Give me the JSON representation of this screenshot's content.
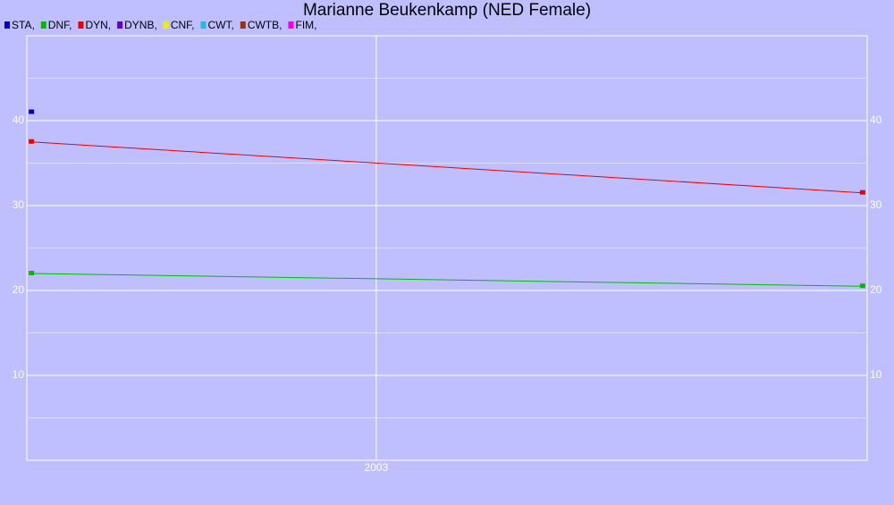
{
  "chart_data": {
    "type": "line",
    "title": "Marianne Beukenkamp (NED Female)",
    "x": [
      2002.476,
      2003.739
    ],
    "xlim": [
      2002.469,
      2003.746
    ],
    "xticks": [
      2003
    ],
    "ylim": [
      0,
      50
    ],
    "yticks": [
      10,
      20,
      30,
      40
    ],
    "grid": true,
    "legend": "top-left",
    "series": [
      {
        "name": "STA,",
        "color": "#0000cc",
        "values": [
          41,
          null
        ]
      },
      {
        "name": "DNF,",
        "color": "#00bb00",
        "values": [
          22,
          20.5
        ]
      },
      {
        "name": "DYN,",
        "color": "#ee0000",
        "values": [
          37.5,
          31.5
        ]
      },
      {
        "name": "DYNB,",
        "color": "#6600cc",
        "values": [
          null,
          null
        ]
      },
      {
        "name": "CNF,",
        "color": "#eeee00",
        "values": [
          null,
          null
        ]
      },
      {
        "name": "CWT,",
        "color": "#22bbdd",
        "values": [
          null,
          null
        ]
      },
      {
        "name": "CWTB,",
        "color": "#993300",
        "values": [
          null,
          null
        ]
      },
      {
        "name": "FIM,",
        "color": "#ee00ee",
        "values": [
          null,
          null
        ]
      }
    ]
  }
}
